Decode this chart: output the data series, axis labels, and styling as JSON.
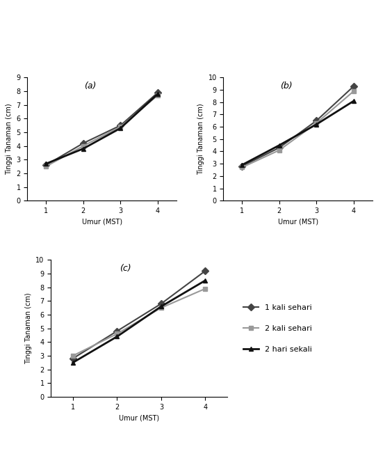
{
  "x": [
    1,
    2,
    3,
    4
  ],
  "subplot_a": {
    "label": "(a)",
    "ylim": [
      0,
      9
    ],
    "yticks": [
      0,
      1,
      2,
      3,
      4,
      5,
      6,
      7,
      8,
      9
    ],
    "series": {
      "1 kali sehari": [
        2.6,
        4.2,
        5.5,
        7.9
      ],
      "2 kali sehari": [
        2.5,
        4.0,
        5.4,
        7.7
      ],
      "2 hari sekali": [
        2.7,
        3.8,
        5.3,
        7.8
      ]
    }
  },
  "subplot_b": {
    "label": "(b)",
    "ylim": [
      0,
      10
    ],
    "yticks": [
      0,
      1,
      2,
      3,
      4,
      5,
      6,
      7,
      8,
      9,
      10
    ],
    "series": {
      "1 kali sehari": [
        2.8,
        4.3,
        6.5,
        9.3
      ],
      "2 kali sehari": [
        2.7,
        4.1,
        6.3,
        8.9
      ],
      "2 hari sekali": [
        2.9,
        4.5,
        6.2,
        8.1
      ]
    }
  },
  "subplot_c": {
    "label": "(c)",
    "ylim": [
      0,
      10
    ],
    "yticks": [
      0,
      1,
      2,
      3,
      4,
      5,
      6,
      7,
      8,
      9,
      10
    ],
    "series": {
      "1 kali sehari": [
        2.8,
        4.8,
        6.8,
        9.2
      ],
      "2 kali sehari": [
        3.0,
        4.6,
        6.5,
        7.9
      ],
      "2 hari sekali": [
        2.5,
        4.4,
        6.6,
        8.5
      ]
    }
  },
  "series_styles": {
    "1 kali sehari": {
      "color": "#444444",
      "marker": "D",
      "linestyle": "-",
      "linewidth": 1.5,
      "markersize": 5
    },
    "2 kali sehari": {
      "color": "#999999",
      "marker": "s",
      "linestyle": "-",
      "linewidth": 1.5,
      "markersize": 5
    },
    "2 hari sekali": {
      "color": "#111111",
      "marker": "^",
      "linestyle": "-",
      "linewidth": 2.0,
      "markersize": 5
    }
  },
  "xlabel": "Umur (MST)",
  "ylabel": "Tinggi Tanaman (cm)",
  "xticks": [
    1,
    2,
    3,
    4
  ],
  "label_fontsize": 9,
  "axis_label_fontsize": 7,
  "tick_fontsize": 7,
  "legend_fontsize": 8,
  "subplot_label_fontsize": 9
}
